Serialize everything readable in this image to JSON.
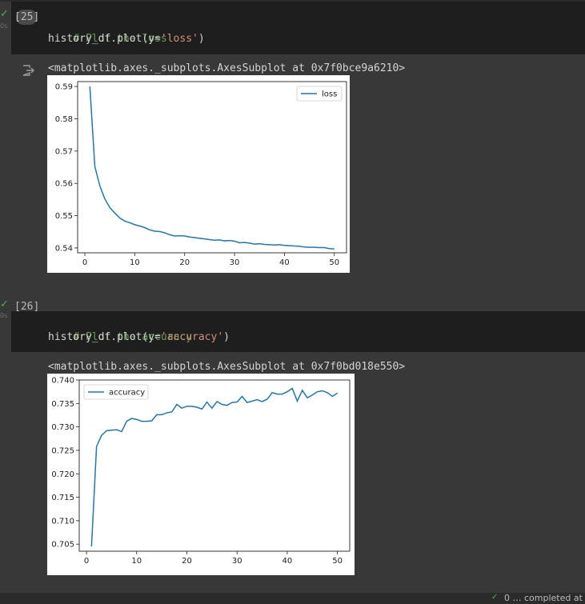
{
  "cells": [
    {
      "exec_count": "[25]",
      "run_time": "0s",
      "comment": "# Plot the loss",
      "code_prefix": "history_df.plot(y=",
      "code_string": "'loss'",
      "code_suffix": ")",
      "output_text": "<matplotlib.axes._subplots.AxesSubplot at 0x7f0bce9a6210>"
    },
    {
      "exec_count": "[26]",
      "run_time": "0s",
      "comment": "# Plot the accuracy",
      "code_prefix": "history_df.plot(y=",
      "code_string": "'accuracy'",
      "code_suffix": ")",
      "output_text": "<matplotlib.axes._subplots.AxesSubplot at 0x7f0bd018e550>"
    }
  ],
  "chart_data": [
    {
      "type": "line",
      "title": "",
      "xlabel": "",
      "ylabel": "",
      "xlim": [
        1,
        50
      ],
      "ylim": [
        0.5385,
        0.5915
      ],
      "xticks": [
        0,
        10,
        20,
        30,
        40,
        50
      ],
      "yticks": [
        0.54,
        0.55,
        0.56,
        0.57,
        0.58,
        0.59
      ],
      "ytick_labels": [
        "0.54",
        "0.55",
        "0.56",
        "0.57",
        "0.58",
        "0.59"
      ],
      "legend": "upper right",
      "series": [
        {
          "name": "loss",
          "color": "#1f77b4",
          "x": [
            1,
            2,
            3,
            4,
            5,
            6,
            7,
            8,
            9,
            10,
            11,
            12,
            13,
            14,
            15,
            16,
            17,
            18,
            19,
            20,
            21,
            22,
            23,
            24,
            25,
            26,
            27,
            28,
            29,
            30,
            31,
            32,
            33,
            34,
            35,
            36,
            37,
            38,
            39,
            40,
            41,
            42,
            43,
            44,
            45,
            46,
            47,
            48,
            49,
            50
          ],
          "values": [
            0.59,
            0.5652,
            0.5592,
            0.5552,
            0.5525,
            0.5508,
            0.5493,
            0.5483,
            0.5478,
            0.5472,
            0.5468,
            0.5463,
            0.5456,
            0.5452,
            0.5451,
            0.5447,
            0.5441,
            0.5437,
            0.5438,
            0.5437,
            0.5434,
            0.5432,
            0.543,
            0.5428,
            0.5426,
            0.5424,
            0.5425,
            0.5422,
            0.5423,
            0.5421,
            0.5416,
            0.5417,
            0.5415,
            0.5412,
            0.5413,
            0.5411,
            0.541,
            0.5409,
            0.541,
            0.5408,
            0.5407,
            0.5406,
            0.5405,
            0.5403,
            0.5402,
            0.5402,
            0.5401,
            0.5401,
            0.5398,
            0.5397
          ]
        }
      ]
    },
    {
      "type": "line",
      "title": "",
      "xlabel": "",
      "ylabel": "",
      "xlim": [
        1,
        50
      ],
      "ylim": [
        0.7035,
        0.74
      ],
      "xticks": [
        0,
        10,
        20,
        30,
        40,
        50
      ],
      "yticks": [
        0.705,
        0.71,
        0.715,
        0.72,
        0.725,
        0.73,
        0.735,
        0.74
      ],
      "ytick_labels": [
        "0.705",
        "0.710",
        "0.715",
        "0.720",
        "0.725",
        "0.730",
        "0.735",
        "0.740"
      ],
      "legend": "upper left",
      "series": [
        {
          "name": "accuracy",
          "color": "#1f77b4",
          "x": [
            1,
            2,
            3,
            4,
            5,
            6,
            7,
            8,
            9,
            10,
            11,
            12,
            13,
            14,
            15,
            16,
            17,
            18,
            19,
            20,
            21,
            22,
            23,
            24,
            25,
            26,
            27,
            28,
            29,
            30,
            31,
            32,
            33,
            34,
            35,
            36,
            37,
            38,
            39,
            40,
            41,
            42,
            43,
            44,
            45,
            46,
            47,
            48,
            49,
            50
          ],
          "values": [
            0.7045,
            0.7258,
            0.7282,
            0.7292,
            0.7293,
            0.7294,
            0.729,
            0.7312,
            0.7318,
            0.7316,
            0.7312,
            0.7312,
            0.7313,
            0.7326,
            0.7326,
            0.733,
            0.7332,
            0.7348,
            0.734,
            0.7344,
            0.7344,
            0.7342,
            0.7338,
            0.7353,
            0.734,
            0.7354,
            0.7348,
            0.7346,
            0.7352,
            0.7353,
            0.7365,
            0.7352,
            0.7355,
            0.7358,
            0.7354,
            0.7359,
            0.7373,
            0.737,
            0.737,
            0.7375,
            0.7382,
            0.7355,
            0.7378,
            0.7362,
            0.7368,
            0.7375,
            0.7377,
            0.7373,
            0.7365,
            0.7372
          ]
        }
      ]
    }
  ],
  "footer": {
    "status_text": "0 … completed at"
  }
}
